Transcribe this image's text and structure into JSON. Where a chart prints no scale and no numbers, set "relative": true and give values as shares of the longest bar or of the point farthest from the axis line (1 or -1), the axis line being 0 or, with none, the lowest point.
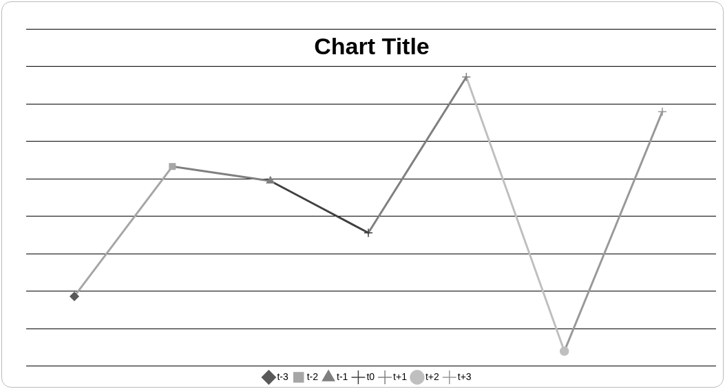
{
  "chart_data": {
    "type": "line",
    "title": "Chart Title",
    "relative": true,
    "grid": true,
    "legend": "bottom",
    "line_style": "solid",
    "categories": [
      null,
      null,
      null,
      null,
      null,
      null,
      null
    ],
    "series": [
      {
        "name": "t-3",
        "color": "#595959",
        "marker": "diamond",
        "values": [
          0.24,
          null,
          null,
          null,
          null,
          null,
          null
        ]
      },
      {
        "name": "t-2",
        "color": "#a6a6a6",
        "marker": "square",
        "values": [
          0.24,
          0.69,
          null,
          null,
          null,
          null,
          null
        ]
      },
      {
        "name": "t-1",
        "color": "#7f7f7f",
        "marker": "triangle",
        "values": [
          null,
          0.69,
          0.64,
          null,
          null,
          null,
          null
        ]
      },
      {
        "name": "t0",
        "color": "#404040",
        "marker": "cross",
        "values": [
          null,
          null,
          0.64,
          0.46,
          null,
          null,
          null
        ]
      },
      {
        "name": "t+1",
        "color": "#808080",
        "marker": "cross",
        "values": [
          null,
          null,
          null,
          0.46,
          1,
          null,
          null
        ]
      },
      {
        "name": "t+2",
        "color": "#bfbfbf",
        "marker": "circle",
        "values": [
          null,
          null,
          null,
          null,
          1,
          0.05,
          null
        ]
      },
      {
        "name": "t+3",
        "color": "#999999",
        "marker": "cross",
        "values": [
          null,
          null,
          null,
          null,
          null,
          0.05,
          0.88
        ]
      }
    ]
  }
}
